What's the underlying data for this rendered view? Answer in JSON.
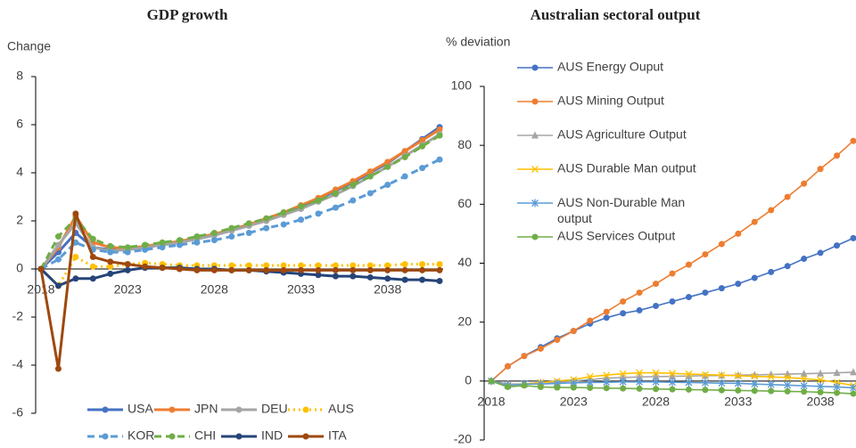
{
  "chart_data": [
    {
      "type": "line",
      "title": "GDP growth",
      "y_label": "Change",
      "legend": "bottom",
      "x": [
        2018,
        2019,
        2020,
        2021,
        2022,
        2023,
        2024,
        2025,
        2026,
        2027,
        2028,
        2029,
        2030,
        2031,
        2032,
        2033,
        2034,
        2035,
        2036,
        2037,
        2038,
        2039,
        2040,
        2041
      ],
      "xlim": [
        2018,
        2041
      ],
      "xticks": [
        2018,
        2023,
        2028,
        2033,
        2038
      ],
      "ylim": [
        -6,
        8
      ],
      "yticks": [
        -6,
        -4,
        -2,
        0,
        2,
        4,
        6,
        8
      ],
      "series": [
        {
          "name": "USA",
          "color": "#4472c4",
          "marker": "circle",
          "values": [
            0,
            0.7,
            1.5,
            0.9,
            0.8,
            0.8,
            0.9,
            1.0,
            1.1,
            1.25,
            1.4,
            1.6,
            1.8,
            2.05,
            2.3,
            2.6,
            2.9,
            3.25,
            3.6,
            4.0,
            4.4,
            4.9,
            5.4,
            5.9
          ]
        },
        {
          "name": "JPN",
          "color": "#ed7d31",
          "marker": "circle",
          "values": [
            0,
            0.9,
            2.2,
            1.1,
            0.9,
            0.85,
            0.95,
            1.05,
            1.15,
            1.3,
            1.45,
            1.65,
            1.85,
            2.1,
            2.35,
            2.65,
            2.95,
            3.3,
            3.65,
            4.05,
            4.45,
            4.9,
            5.35,
            5.8
          ]
        },
        {
          "name": "DEU",
          "color": "#a5a5a5",
          "marker": "circle",
          "values": [
            0,
            1.0,
            1.9,
            0.9,
            0.75,
            0.8,
            0.9,
            1.0,
            1.1,
            1.25,
            1.4,
            1.6,
            1.8,
            2.0,
            2.25,
            2.5,
            2.8,
            3.1,
            3.45,
            3.85,
            4.25,
            4.7,
            5.15,
            5.6
          ]
        },
        {
          "name": "AUS",
          "color": "#ffc000",
          "marker": "circle",
          "dash": "dot",
          "values": [
            0,
            -0.7,
            0.5,
            0.1,
            0.1,
            0.2,
            0.25,
            0.2,
            0.15,
            0.15,
            0.15,
            0.15,
            0.15,
            0.15,
            0.15,
            0.15,
            0.15,
            0.15,
            0.15,
            0.15,
            0.15,
            0.2,
            0.2,
            0.2
          ]
        },
        {
          "name": "KOR",
          "color": "#5b9bd5",
          "marker": "circle",
          "dash": "dash",
          "values": [
            0,
            0.4,
            1.1,
            0.8,
            0.7,
            0.7,
            0.8,
            0.9,
            1.0,
            1.1,
            1.2,
            1.35,
            1.5,
            1.7,
            1.85,
            2.05,
            2.3,
            2.55,
            2.85,
            3.15,
            3.5,
            3.85,
            4.2,
            4.55
          ]
        },
        {
          "name": "CHI",
          "color": "#70ad47",
          "marker": "circle",
          "dash": "dash",
          "values": [
            0,
            1.35,
            2.1,
            1.25,
            0.95,
            0.9,
            1.0,
            1.1,
            1.2,
            1.35,
            1.5,
            1.7,
            1.9,
            2.1,
            2.35,
            2.6,
            2.85,
            3.15,
            3.5,
            3.85,
            4.25,
            4.65,
            5.1,
            5.55
          ]
        },
        {
          "name": "IND",
          "color": "#264478",
          "marker": "circle",
          "values": [
            0,
            -0.7,
            -0.4,
            -0.4,
            -0.2,
            -0.05,
            0.05,
            0.05,
            0.05,
            0,
            0,
            -0.05,
            -0.05,
            -0.1,
            -0.15,
            -0.2,
            -0.25,
            -0.3,
            -0.3,
            -0.35,
            -0.4,
            -0.45,
            -0.45,
            -0.5
          ]
        },
        {
          "name": "ITA",
          "color": "#9e480e",
          "marker": "circle",
          "values": [
            0,
            -4.15,
            2.3,
            0.5,
            0.3,
            0.2,
            0.1,
            0.05,
            0,
            -0.05,
            -0.05,
            -0.05,
            -0.05,
            -0.05,
            -0.05,
            -0.05,
            -0.05,
            -0.05,
            -0.05,
            -0.05,
            -0.05,
            -0.05,
            -0.05,
            -0.05
          ]
        }
      ]
    },
    {
      "type": "line",
      "title": "Australian sectoral output",
      "y_label": "% deviation",
      "legend": "top",
      "x": [
        2018,
        2019,
        2020,
        2021,
        2022,
        2023,
        2024,
        2025,
        2026,
        2027,
        2028,
        2029,
        2030,
        2031,
        2032,
        2033,
        2034,
        2035,
        2036,
        2037,
        2038,
        2039,
        2040
      ],
      "xlim": [
        2018,
        2040
      ],
      "xticks": [
        2018,
        2023,
        2028,
        2033,
        2038
      ],
      "ylim": [
        -20,
        100
      ],
      "yticks": [
        -20,
        0,
        20,
        40,
        60,
        80,
        100
      ],
      "series": [
        {
          "name": "AUS Energy Ouput",
          "color": "#4472c4",
          "marker": "circle",
          "values": [
            0,
            5,
            8.5,
            11.5,
            14.5,
            17,
            19.5,
            21.5,
            23,
            24,
            25.5,
            27,
            28.5,
            30,
            31.5,
            33,
            35,
            37,
            39,
            41.5,
            43.5,
            46,
            48.5
          ]
        },
        {
          "name": "AUS Mining Output",
          "color": "#ed7d31",
          "marker": "circle",
          "values": [
            0,
            5,
            8.5,
            11,
            14,
            17,
            20.5,
            23.5,
            27,
            30,
            33,
            36.5,
            39.5,
            43,
            46.5,
            50,
            54,
            58,
            62.5,
            67,
            72,
            76.5,
            81.5
          ]
        },
        {
          "name": "AUS Agriculture Output",
          "color": "#a5a5a5",
          "marker": "triangle",
          "values": [
            0,
            -1,
            -1,
            -0.5,
            -0.5,
            0,
            0.5,
            1,
            1.2,
            1.4,
            1.5,
            1.6,
            1.7,
            1.8,
            1.9,
            2,
            2.1,
            2.2,
            2.4,
            2.5,
            2.6,
            2.8,
            3
          ]
        },
        {
          "name": "AUS Durable Man output",
          "color": "#ffc000",
          "marker": "x",
          "values": [
            0,
            -1.5,
            -1,
            -0.5,
            0,
            0.5,
            1.5,
            2,
            2.5,
            2.8,
            2.8,
            2.6,
            2.4,
            2.2,
            2,
            1.8,
            1.6,
            1.4,
            1.2,
            0.8,
            0.4,
            -0.5,
            -1.5
          ]
        },
        {
          "name": "AUS Non-Durable Man output",
          "color": "#5b9bd5",
          "marker": "star",
          "values": [
            0,
            -1.5,
            -1,
            -1,
            -0.8,
            -0.6,
            -0.5,
            -0.4,
            -0.3,
            -0.3,
            -0.3,
            -0.4,
            -0.5,
            -0.6,
            -0.7,
            -0.8,
            -1,
            -1.2,
            -1.4,
            -1.6,
            -1.8,
            -2,
            -2.3
          ]
        },
        {
          "name": "AUS Services Output",
          "color": "#70ad47",
          "marker": "circle",
          "values": [
            0,
            -2,
            -1.5,
            -2,
            -2.2,
            -2.2,
            -2.3,
            -2.4,
            -2.5,
            -2.6,
            -2.7,
            -2.8,
            -2.9,
            -3,
            -3.1,
            -3.2,
            -3.3,
            -3.4,
            -3.5,
            -3.6,
            -3.8,
            -4,
            -4.3
          ]
        }
      ]
    }
  ]
}
